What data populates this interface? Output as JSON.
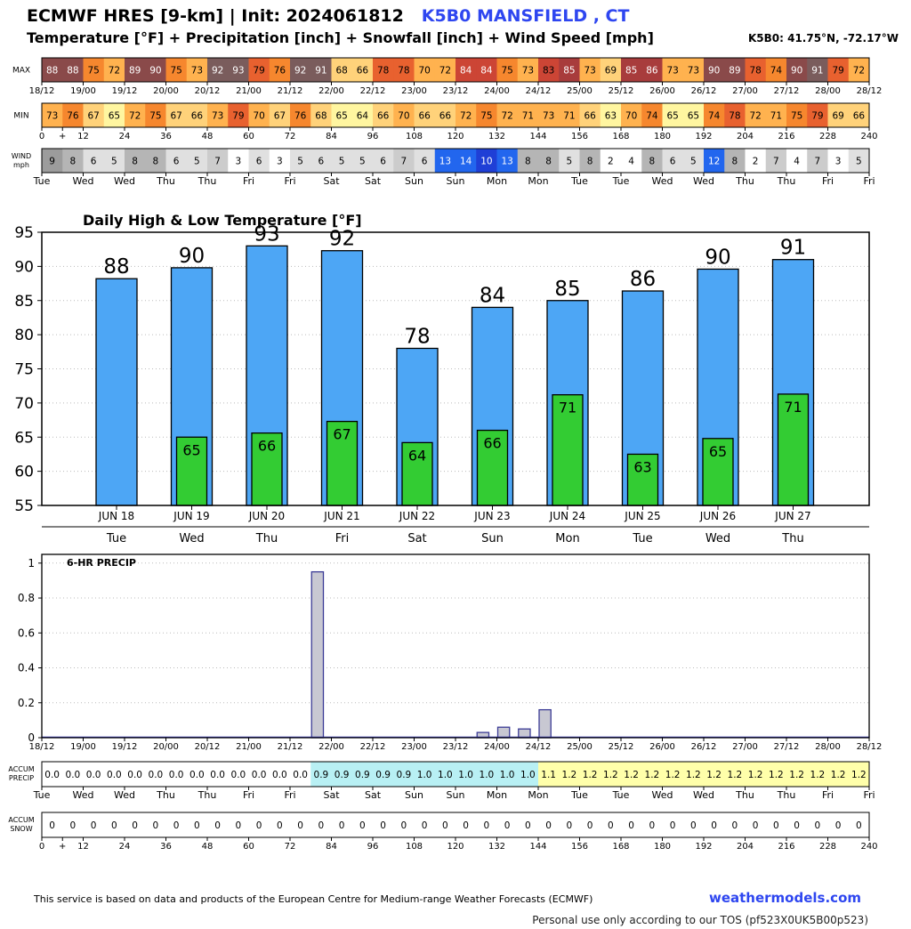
{
  "header": {
    "model": "ECMWF HRES [9-km] | Init: 2024061812",
    "location": "K5B0 MANSFIELD     , CT",
    "subtitle": "Temperature [°F] + Precipitation [inch] + Snowfall [inch] + Wind Speed [mph]",
    "coords": "K5B0: 41.75°N, -72.17°W"
  },
  "footer": {
    "notice": "This service is based on data and products of the European Centre for Medium-range Weather Forecasts (ECMWF)",
    "brand": "weathermodels.com",
    "tos": "Personal use only according to our TOS (pf523X0UK5B00p523)"
  },
  "strips": {
    "max_label": "MAX",
    "min_label": "MIN",
    "wind_label_1": "WIND",
    "wind_label_2": "mph",
    "accum_precip_label_1": "ACCUM",
    "accum_precip_label_2": "PRECIP",
    "accum_snow_label_1": "ACCUM",
    "accum_snow_label_2": "SNOW",
    "max_values": [
      88,
      88,
      75,
      72,
      89,
      90,
      75,
      73,
      92,
      93,
      79,
      76,
      92,
      91,
      68,
      66,
      78,
      78,
      70,
      72,
      84,
      84,
      75,
      73,
      83,
      85,
      73,
      69,
      85,
      86,
      73,
      73,
      90,
      89,
      78,
      74,
      90,
      91,
      79,
      72
    ],
    "min_values": [
      73,
      76,
      67,
      65,
      72,
      75,
      67,
      66,
      73,
      79,
      70,
      67,
      76,
      68,
      65,
      64,
      66,
      70,
      66,
      66,
      72,
      75,
      72,
      71,
      73,
      71,
      66,
      63,
      70,
      74,
      65,
      65,
      74,
      78,
      72,
      71,
      75,
      79,
      69,
      66
    ],
    "wind_values": [
      9,
      8,
      6,
      5,
      8,
      8,
      6,
      5,
      7,
      3,
      6,
      3,
      5,
      6,
      5,
      5,
      6,
      7,
      6,
      13,
      14,
      10,
      13,
      8,
      8,
      5,
      8,
      2,
      4,
      8,
      6,
      5,
      12,
      8,
      2,
      7,
      4,
      7,
      3,
      5
    ],
    "accum_precip_values": [
      "0.0",
      "0.0",
      "0.0",
      "0.0",
      "0.0",
      "0.0",
      "0.0",
      "0.0",
      "0.0",
      "0.0",
      "0.0",
      "0.0",
      "0.0",
      "0.9",
      "0.9",
      "0.9",
      "0.9",
      "0.9",
      "1.0",
      "1.0",
      "1.0",
      "1.0",
      "1.0",
      "1.0",
      "1.1",
      "1.2",
      "1.2",
      "1.2",
      "1.2",
      "1.2",
      "1.2",
      "1.2",
      "1.2",
      "1.2",
      "1.2",
      "1.2",
      "1.2",
      "1.2",
      "1.2",
      "1.2"
    ],
    "accum_snow_values": [
      0,
      0,
      0,
      0,
      0,
      0,
      0,
      0,
      0,
      0,
      0,
      0,
      0,
      0,
      0,
      0,
      0,
      0,
      0,
      0,
      0,
      0,
      0,
      0,
      0,
      0,
      0,
      0,
      0,
      0,
      0,
      0,
      0,
      0,
      0,
      0,
      0,
      0,
      0,
      0
    ],
    "date_ticks": [
      "18/12",
      "19/00",
      "19/12",
      "20/00",
      "20/12",
      "21/00",
      "21/12",
      "22/00",
      "22/12",
      "23/00",
      "23/12",
      "24/00",
      "24/12",
      "25/00",
      "25/12",
      "26/00",
      "26/12",
      "27/00",
      "27/12",
      "28/00",
      "28/12"
    ],
    "hour_ticks": [
      "0",
      "+",
      "12",
      "24",
      "36",
      "48",
      "60",
      "72",
      "84",
      "96",
      "108",
      "120",
      "132",
      "144",
      "156",
      "168",
      "180",
      "192",
      "204",
      "216",
      "228",
      "240"
    ],
    "weekday_ticks": [
      "Tue",
      "Wed",
      "Wed",
      "Thu",
      "Thu",
      "Fri",
      "Fri",
      "Sat",
      "Sat",
      "Sun",
      "Sun",
      "Mon",
      "Mon",
      "Tue",
      "Tue",
      "Wed",
      "Wed",
      "Thu",
      "Thu",
      "Fri",
      "Fri"
    ]
  },
  "chart_data": [
    {
      "type": "bar",
      "title": "Daily High & Low Temperature [°F]",
      "categories": [
        "JUN 18",
        "JUN 19",
        "JUN 20",
        "JUN 21",
        "JUN 22",
        "JUN 23",
        "JUN 24",
        "JUN 25",
        "JUN 26",
        "JUN 27"
      ],
      "weekdays": [
        "Tue",
        "Wed",
        "Thu",
        "Fri",
        "Sat",
        "Sun",
        "Mon",
        "Tue",
        "Wed",
        "Thu"
      ],
      "series": [
        {
          "name": "High",
          "values": [
            88,
            90,
            93,
            92,
            78,
            84,
            85,
            86,
            90,
            91
          ],
          "color": "#4da6f5"
        },
        {
          "name": "Low",
          "values": [
            null,
            65,
            66,
            67,
            64,
            66,
            71,
            63,
            65,
            71
          ],
          "color": "#33cc33"
        }
      ],
      "highs_exact": [
        88.2,
        89.8,
        93.0,
        92.3,
        78.0,
        84.0,
        85.0,
        86.4,
        89.6,
        91.0
      ],
      "lows_exact": [
        null,
        65.0,
        65.6,
        67.3,
        64.2,
        66.0,
        71.2,
        62.5,
        64.8,
        71.3
      ],
      "ylim": [
        55,
        95
      ],
      "yticks": [
        55,
        60,
        65,
        70,
        75,
        80,
        85,
        90,
        95
      ],
      "grid": true
    },
    {
      "type": "bar",
      "title": "6-HR PRECIP",
      "x_unit": "forecast hour",
      "x": [
        84,
        132,
        138,
        144,
        150
      ],
      "values": [
        0.95,
        0.03,
        0.06,
        0.05,
        0.16
      ],
      "ylim": [
        0,
        1.05
      ],
      "yticks": [
        "0",
        "0.2",
        "0.4",
        "0.6",
        "0.8",
        "1"
      ],
      "grid": true
    }
  ],
  "colors": {
    "high_bar": "#4da6f5",
    "low_bar": "#33cc33",
    "precip_bar": "#c8c8d2",
    "accent": "#2e46f0"
  }
}
